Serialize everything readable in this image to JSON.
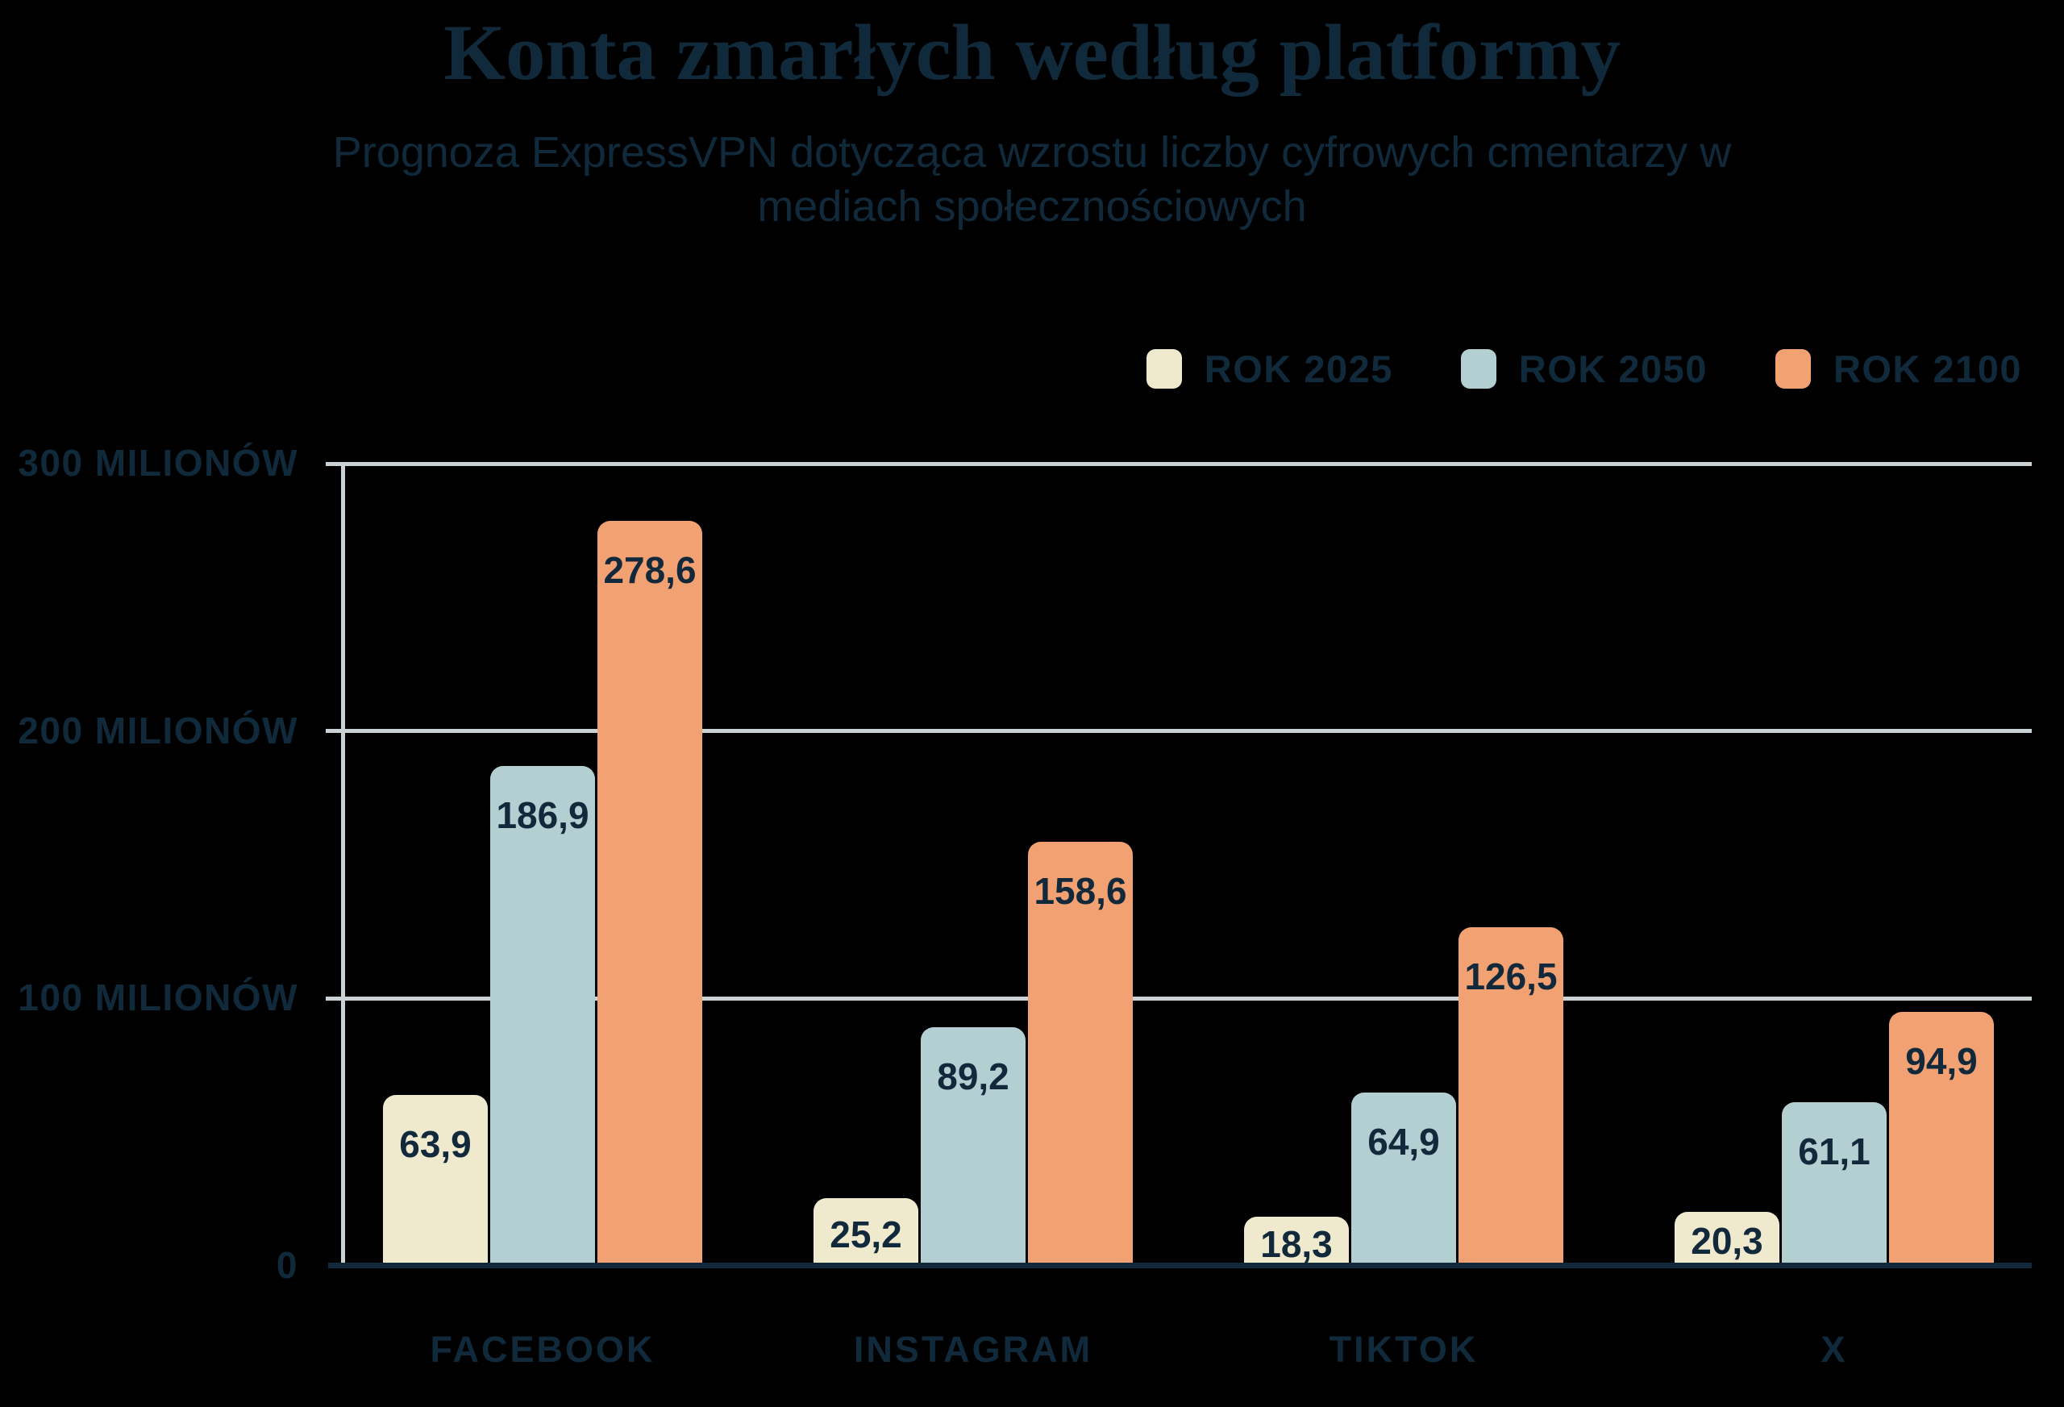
{
  "title": "Konta zmarłych według platformy",
  "subtitle": {
    "line1": "Prognoza ExpressVPN dotycząca wzrostu liczby cyfrowych cmentarzy w",
    "line2": "mediach społecznościowych"
  },
  "colors": {
    "navy_text": "#102a3c",
    "baseline": "#12293c",
    "gridline": "#cbd2d6",
    "background": "#000000",
    "series_2025": "#efe9ce",
    "series_2050": "#b4cfd2",
    "series_2100": "#f2a172"
  },
  "legend": {
    "position": "top-right",
    "items": [
      {
        "label": "ROK 2025",
        "color": "#efe9ce"
      },
      {
        "label": "ROK 2050",
        "color": "#b4cfd2"
      },
      {
        "label": "ROK 2100",
        "color": "#f2a172"
      }
    ]
  },
  "y_axis": {
    "unit": "MILIONÓW",
    "ticks": [
      {
        "value": 300,
        "label": "300 MILIONÓW"
      },
      {
        "value": 200,
        "label": "200 MILIONÓW"
      },
      {
        "value": 100,
        "label": "100 MILIONÓW"
      },
      {
        "value": 0,
        "label": "0"
      }
    ]
  },
  "chart_data": {
    "type": "bar",
    "title": "Konta zmarłych według platformy",
    "subtitle": "Prognoza ExpressVPN dotycząca wzrostu liczby cyfrowych cmentarzy w mediach społecznościowych",
    "categories": [
      "FACEBOOK",
      "INSTAGRAM",
      "TIKTOK",
      "X"
    ],
    "series": [
      {
        "name": "ROK 2025",
        "color": "#efe9ce",
        "values": [
          63.9,
          25.2,
          18.3,
          20.3
        ]
      },
      {
        "name": "ROK 2050",
        "color": "#b4cfd2",
        "values": [
          186.9,
          89.2,
          64.9,
          61.1
        ]
      },
      {
        "name": "ROK 2100",
        "color": "#f2a172",
        "values": [
          278.6,
          158.6,
          126.5,
          94.9
        ]
      }
    ],
    "ylim": [
      0,
      300
    ],
    "grid": true,
    "decimal_separator": ",",
    "legend_position": "top-right"
  }
}
